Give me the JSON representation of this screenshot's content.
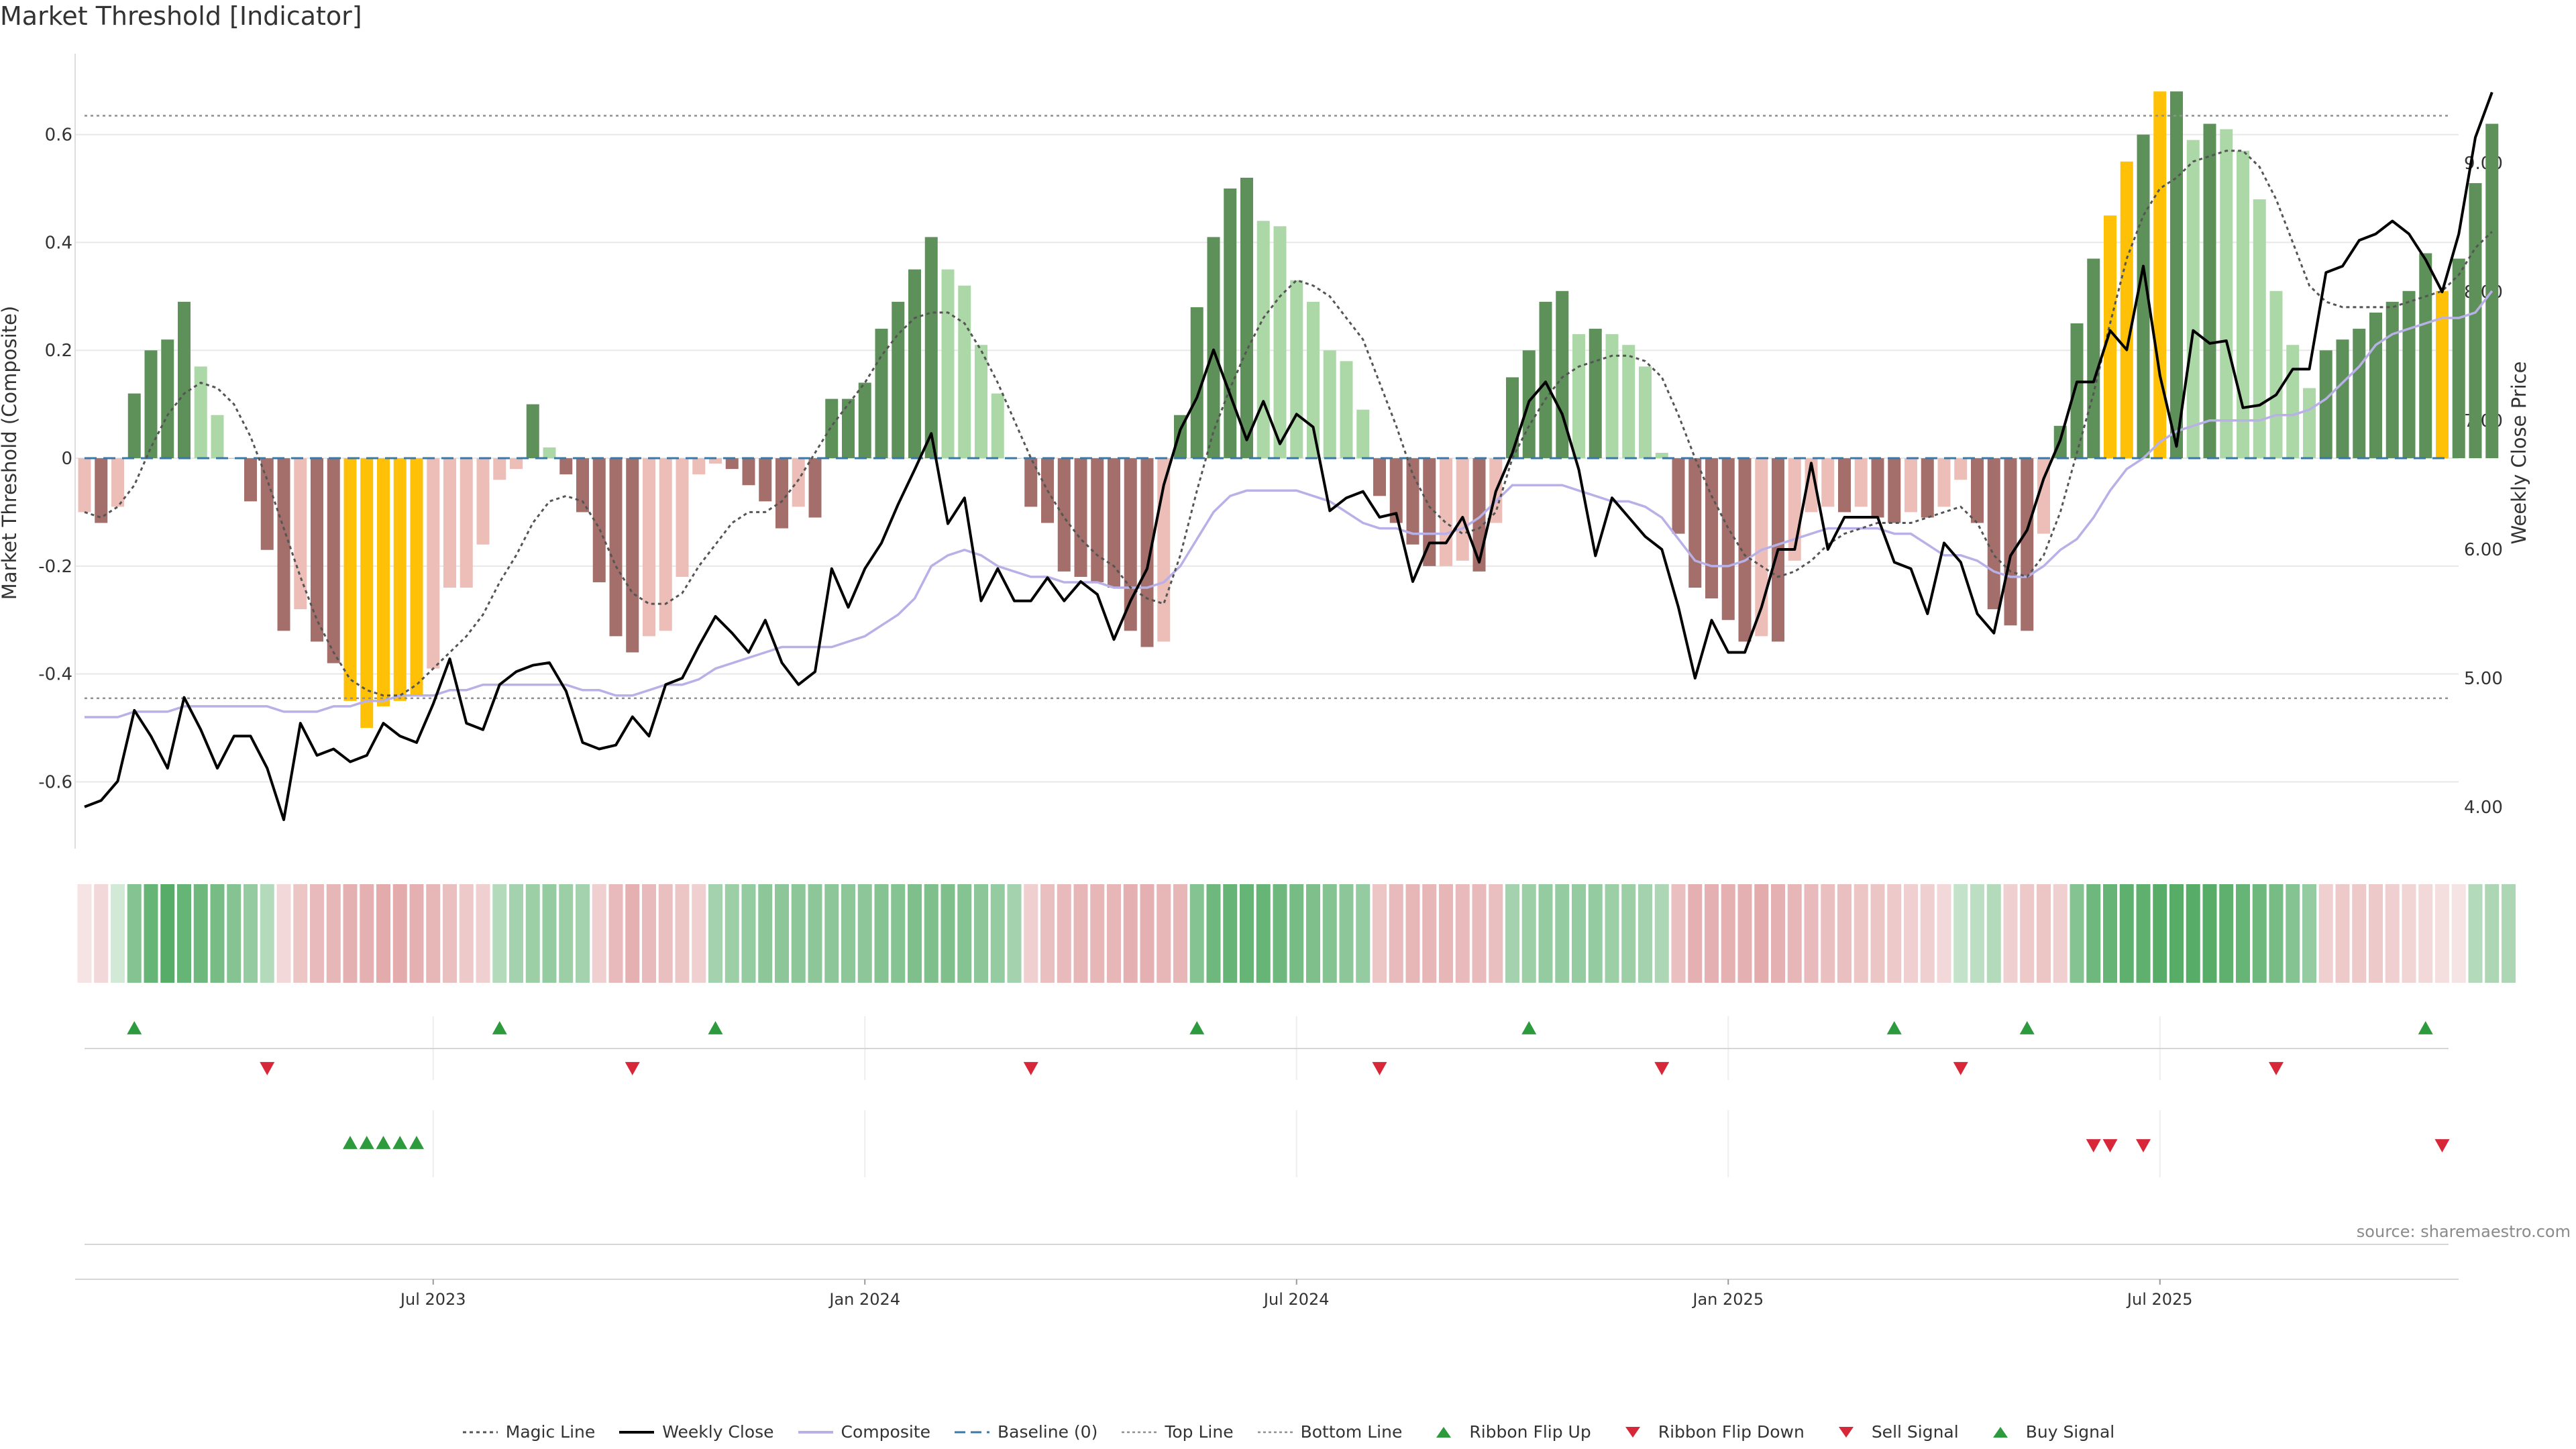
{
  "title": "Market Threshold [Indicator]",
  "source": "source: sharemaestro.com",
  "colors": {
    "magic": "#555555",
    "close": "#000000",
    "composite": "#b8b0e6",
    "baseline": "#3a78a8",
    "threshold": "#8f8f8f",
    "up_strong": "#5e9159",
    "up_weak": "#acd8a7",
    "down_strong": "#a46f6a",
    "down_weak": "#ecbeb7",
    "extreme": "#ffc107",
    "flip_up": "#2e9a3e",
    "flip_down": "#d7283a"
  },
  "legend": [
    {
      "label": "Magic Line",
      "icon": "dotted-line-icon"
    },
    {
      "label": "Weekly Close",
      "icon": "solid-line-icon"
    },
    {
      "label": "Composite",
      "icon": "lavender-line-icon"
    },
    {
      "label": "Baseline (0)",
      "icon": "dashed-line-icon"
    },
    {
      "label": "Top Line",
      "icon": "dotted-grey-line-icon"
    },
    {
      "label": "Bottom Line",
      "icon": "dotted-grey-line-icon"
    },
    {
      "label": "Ribbon Flip Up",
      "icon": "triangle-up-icon"
    },
    {
      "label": "Ribbon Flip Down",
      "icon": "triangle-down-icon"
    },
    {
      "label": "Sell Signal",
      "icon": "triangle-down-icon"
    },
    {
      "label": "Buy Signal",
      "icon": "triangle-up-icon"
    }
  ],
  "chart_data": {
    "type": "bar",
    "ylabel_left": "Market Threshold (Composite)",
    "ylabel_right": "Weekly Close Price",
    "ylim_left": [
      -0.73,
      0.75
    ],
    "ylim_right": [
      3.65,
      9.85
    ],
    "yticks_left": [
      "-0.6",
      "-0.4",
      "-0.2",
      "0",
      "0.2",
      "0.4",
      "0.6"
    ],
    "yticks_right": [
      "4.00",
      "5.00",
      "6.00",
      "7.00",
      "8.00",
      "9.00"
    ],
    "xtick_labels": [
      {
        "label": "Jul 2023",
        "week": 21
      },
      {
        "label": "Jan 2024",
        "week": 47
      },
      {
        "label": "Jul 2024",
        "week": 73
      },
      {
        "label": "Jan 2025",
        "week": 99
      },
      {
        "label": "Jul 2025",
        "week": 125
      }
    ],
    "top_line": 0.635,
    "bottom_line": -0.445,
    "baseline": 0,
    "weeks": 143,
    "threshold": [
      -0.1,
      -0.12,
      -0.09,
      0.12,
      0.2,
      0.22,
      0.29,
      0.17,
      0.08,
      0.0,
      -0.08,
      -0.17,
      -0.32,
      -0.28,
      -0.34,
      -0.38,
      -0.45,
      -0.5,
      -0.46,
      -0.45,
      -0.44,
      -0.39,
      -0.24,
      -0.24,
      -0.16,
      -0.04,
      -0.02,
      0.1,
      0.02,
      -0.03,
      -0.1,
      -0.23,
      -0.33,
      -0.36,
      -0.33,
      -0.32,
      -0.22,
      -0.03,
      -0.01,
      -0.02,
      -0.05,
      -0.08,
      -0.13,
      -0.09,
      -0.11,
      0.11,
      0.11,
      0.14,
      0.24,
      0.29,
      0.35,
      0.41,
      0.35,
      0.32,
      0.21,
      0.12,
      0.0,
      -0.09,
      -0.12,
      -0.21,
      -0.22,
      -0.23,
      -0.24,
      -0.32,
      -0.35,
      -0.34,
      0.08,
      0.28,
      0.41,
      0.5,
      0.52,
      0.44,
      0.43,
      0.33,
      0.29,
      0.2,
      0.18,
      0.09,
      -0.07,
      -0.12,
      -0.16,
      -0.2,
      -0.2,
      -0.19,
      -0.21,
      -0.12,
      0.15,
      0.2,
      0.29,
      0.31,
      0.23,
      0.24,
      0.23,
      0.21,
      0.17,
      0.01,
      -0.14,
      -0.24,
      -0.26,
      -0.3,
      -0.34,
      -0.33,
      -0.34,
      -0.19,
      -0.1,
      -0.09,
      -0.1,
      -0.09,
      -0.11,
      -0.12,
      -0.1,
      -0.11,
      -0.09,
      -0.04,
      -0.12,
      -0.28,
      -0.31,
      -0.32,
      -0.14,
      0.06,
      0.25,
      0.37,
      0.45,
      0.55,
      0.6,
      0.68,
      0.68,
      0.59,
      0.62,
      0.61,
      0.57,
      0.48,
      0.31,
      0.21,
      0.13,
      0.2,
      0.22,
      0.24,
      0.27,
      0.29,
      0.31,
      0.38,
      0.31,
      0.37,
      0.51,
      0.62
    ],
    "extreme_weeks": [
      16,
      17,
      18,
      19,
      20,
      122,
      123,
      125,
      142
    ],
    "magic_line": [
      -0.1,
      -0.11,
      -0.09,
      -0.05,
      0.02,
      0.08,
      0.12,
      0.14,
      0.13,
      0.1,
      0.04,
      -0.04,
      -0.13,
      -0.22,
      -0.3,
      -0.36,
      -0.41,
      -0.43,
      -0.44,
      -0.44,
      -0.42,
      -0.39,
      -0.36,
      -0.33,
      -0.29,
      -0.23,
      -0.18,
      -0.12,
      -0.08,
      -0.07,
      -0.08,
      -0.13,
      -0.2,
      -0.25,
      -0.27,
      -0.27,
      -0.25,
      -0.2,
      -0.16,
      -0.12,
      -0.1,
      -0.1,
      -0.08,
      -0.04,
      0.01,
      0.06,
      0.1,
      0.14,
      0.19,
      0.23,
      0.26,
      0.27,
      0.27,
      0.25,
      0.2,
      0.14,
      0.07,
      0.0,
      -0.06,
      -0.11,
      -0.15,
      -0.18,
      -0.2,
      -0.24,
      -0.26,
      -0.27,
      -0.18,
      -0.06,
      0.05,
      0.13,
      0.2,
      0.26,
      0.3,
      0.33,
      0.32,
      0.3,
      0.26,
      0.22,
      0.14,
      0.06,
      -0.03,
      -0.09,
      -0.12,
      -0.14,
      -0.13,
      -0.1,
      0.0,
      0.06,
      0.11,
      0.15,
      0.17,
      0.18,
      0.19,
      0.19,
      0.18,
      0.15,
      0.08,
      0.0,
      -0.07,
      -0.13,
      -0.18,
      -0.2,
      -0.22,
      -0.21,
      -0.19,
      -0.16,
      -0.14,
      -0.13,
      -0.12,
      -0.12,
      -0.12,
      -0.11,
      -0.1,
      -0.09,
      -0.12,
      -0.18,
      -0.21,
      -0.22,
      -0.18,
      -0.1,
      0.01,
      0.12,
      0.25,
      0.37,
      0.45,
      0.5,
      0.52,
      0.55,
      0.56,
      0.57,
      0.57,
      0.54,
      0.48,
      0.4,
      0.32,
      0.29,
      0.28,
      0.28,
      0.28,
      0.28,
      0.29,
      0.3,
      0.31,
      0.34,
      0.39,
      0.42
    ],
    "weekly_close": [
      4.0,
      4.05,
      4.2,
      4.75,
      4.55,
      4.3,
      4.85,
      4.6,
      4.3,
      4.55,
      4.55,
      4.3,
      3.9,
      4.65,
      4.4,
      4.45,
      4.35,
      4.4,
      4.65,
      4.55,
      4.5,
      4.8,
      5.15,
      4.65,
      4.6,
      4.95,
      5.05,
      5.1,
      5.12,
      4.9,
      4.5,
      4.45,
      4.48,
      4.7,
      4.55,
      4.95,
      5.0,
      5.25,
      5.48,
      5.35,
      5.2,
      5.45,
      5.12,
      4.95,
      5.05,
      5.85,
      5.55,
      5.85,
      6.05,
      6.35,
      6.62,
      6.9,
      6.2,
      6.4,
      5.6,
      5.85,
      5.6,
      5.6,
      5.78,
      5.6,
      5.75,
      5.65,
      5.3,
      5.6,
      5.85,
      6.5,
      6.93,
      7.18,
      7.55,
      7.2,
      6.85,
      7.15,
      6.82,
      7.05,
      6.95,
      6.3,
      6.4,
      6.45,
      6.25,
      6.28,
      5.75,
      6.05,
      6.05,
      6.25,
      5.9,
      6.45,
      6.75,
      7.15,
      7.3,
      7.05,
      6.62,
      5.95,
      6.4,
      6.25,
      6.1,
      6.0,
      5.55,
      5.0,
      5.45,
      5.2,
      5.2,
      5.55,
      6.0,
      6.0,
      6.67,
      6.0,
      6.25,
      6.25,
      6.25,
      5.9,
      5.85,
      5.5,
      6.05,
      5.9,
      5.5,
      5.35,
      5.95,
      6.15,
      6.55,
      6.85,
      7.3,
      7.3,
      7.7,
      7.55,
      8.2,
      7.35,
      6.8,
      7.7,
      7.6,
      7.62,
      7.1,
      7.12,
      7.2,
      7.4,
      7.4,
      8.15,
      8.2,
      8.4,
      8.45,
      8.55,
      8.45,
      8.25,
      8.0,
      8.45,
      9.2,
      9.55
    ],
    "composite": [
      -0.48,
      -0.48,
      -0.48,
      -0.47,
      -0.47,
      -0.47,
      -0.46,
      -0.46,
      -0.46,
      -0.46,
      -0.46,
      -0.46,
      -0.47,
      -0.47,
      -0.47,
      -0.46,
      -0.46,
      -0.45,
      -0.45,
      -0.44,
      -0.44,
      -0.44,
      -0.43,
      -0.43,
      -0.42,
      -0.42,
      -0.42,
      -0.42,
      -0.42,
      -0.42,
      -0.43,
      -0.43,
      -0.44,
      -0.44,
      -0.43,
      -0.42,
      -0.42,
      -0.41,
      -0.39,
      -0.38,
      -0.37,
      -0.36,
      -0.35,
      -0.35,
      -0.35,
      -0.35,
      -0.34,
      -0.33,
      -0.31,
      -0.29,
      -0.26,
      -0.2,
      -0.18,
      -0.17,
      -0.18,
      -0.2,
      -0.21,
      -0.22,
      -0.22,
      -0.23,
      -0.23,
      -0.23,
      -0.24,
      -0.24,
      -0.24,
      -0.23,
      -0.2,
      -0.15,
      -0.1,
      -0.07,
      -0.06,
      -0.06,
      -0.06,
      -0.06,
      -0.07,
      -0.08,
      -0.1,
      -0.12,
      -0.13,
      -0.13,
      -0.14,
      -0.14,
      -0.14,
      -0.13,
      -0.11,
      -0.08,
      -0.05,
      -0.05,
      -0.05,
      -0.05,
      -0.06,
      -0.07,
      -0.08,
      -0.08,
      -0.09,
      -0.11,
      -0.15,
      -0.19,
      -0.2,
      -0.2,
      -0.19,
      -0.17,
      -0.16,
      -0.15,
      -0.14,
      -0.13,
      -0.13,
      -0.13,
      -0.13,
      -0.14,
      -0.14,
      -0.16,
      -0.18,
      -0.18,
      -0.19,
      -0.21,
      -0.22,
      -0.22,
      -0.2,
      -0.17,
      -0.15,
      -0.11,
      -0.06,
      -0.02,
      0.0,
      0.03,
      0.05,
      0.06,
      0.07,
      0.07,
      0.07,
      0.07,
      0.08,
      0.08,
      0.09,
      0.11,
      0.14,
      0.17,
      0.21,
      0.23,
      0.24,
      0.25,
      0.26,
      0.26,
      0.27,
      0.31
    ],
    "ribbon": [
      -0.1,
      -0.2,
      0.1,
      0.6,
      0.8,
      0.9,
      0.8,
      0.75,
      0.7,
      0.6,
      0.5,
      0.3,
      -0.2,
      -0.4,
      -0.5,
      -0.55,
      -0.6,
      -0.6,
      -0.65,
      -0.65,
      -0.6,
      -0.55,
      -0.45,
      -0.35,
      -0.3,
      0.3,
      0.4,
      0.45,
      0.5,
      0.45,
      0.4,
      -0.3,
      -0.5,
      -0.6,
      -0.5,
      -0.45,
      -0.4,
      -0.3,
      0.4,
      0.45,
      0.5,
      0.55,
      0.55,
      0.55,
      0.55,
      0.55,
      0.55,
      0.55,
      0.6,
      0.6,
      0.65,
      0.65,
      0.65,
      0.6,
      0.55,
      0.5,
      0.4,
      -0.3,
      -0.45,
      -0.5,
      -0.55,
      -0.55,
      -0.55,
      -0.6,
      -0.6,
      -0.55,
      -0.55,
      0.6,
      0.75,
      0.8,
      0.8,
      0.8,
      0.75,
      0.7,
      0.65,
      0.6,
      0.55,
      0.5,
      -0.4,
      -0.5,
      -0.55,
      -0.55,
      -0.55,
      -0.5,
      -0.5,
      -0.45,
      0.4,
      0.45,
      0.5,
      0.5,
      0.5,
      0.5,
      0.45,
      0.45,
      0.4,
      0.35,
      -0.45,
      -0.6,
      -0.6,
      -0.6,
      -0.6,
      -0.65,
      -0.6,
      -0.55,
      -0.5,
      -0.45,
      -0.45,
      -0.4,
      -0.4,
      -0.35,
      -0.3,
      -0.3,
      -0.2,
      0.2,
      0.25,
      0.3,
      -0.3,
      -0.35,
      -0.4,
      -0.3,
      0.6,
      0.75,
      0.8,
      0.85,
      0.85,
      0.9,
      0.9,
      0.9,
      0.9,
      0.85,
      0.8,
      0.75,
      0.7,
      0.6,
      0.5,
      -0.3,
      -0.35,
      -0.35,
      -0.35,
      -0.3,
      -0.25,
      -0.2,
      -0.15,
      -0.1,
      0.3,
      0.35,
      0.35
    ],
    "ribbon_flip_up": [
      3,
      25,
      38,
      67,
      87,
      109,
      117,
      141
    ],
    "ribbon_flip_down": [
      11,
      33,
      57,
      78,
      95,
      113,
      132
    ],
    "buy_signal": [
      16,
      17,
      18,
      19,
      20
    ],
    "sell_signal": [
      121,
      122,
      124,
      142
    ]
  }
}
